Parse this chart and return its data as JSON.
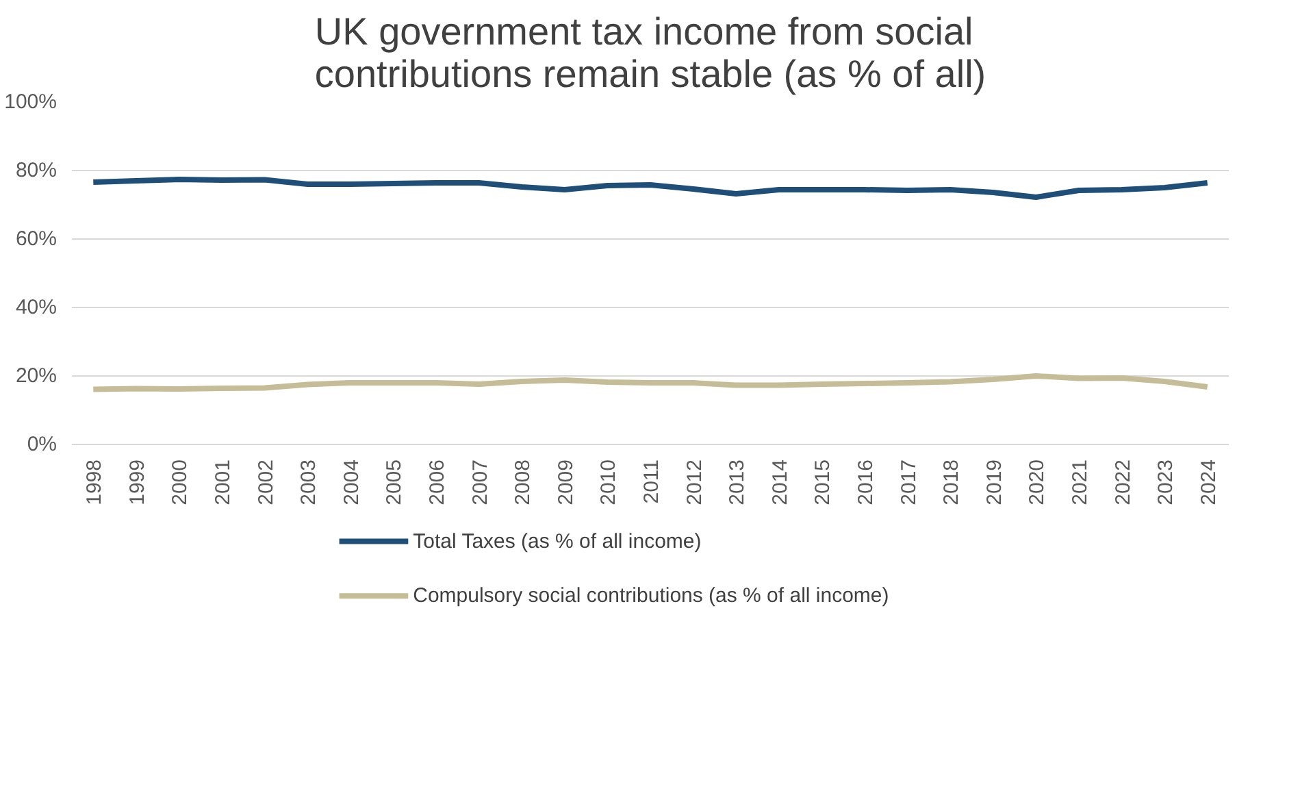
{
  "chart_data": {
    "type": "line",
    "title": "UK government tax income from social contributions remain stable (as % of all)",
    "categories": [
      "1998",
      "1999",
      "2000",
      "2001",
      "2002",
      "2003",
      "2004",
      "2005",
      "2006",
      "2007",
      "2008",
      "2009",
      "2010",
      "2011",
      "2012",
      "2013",
      "2014",
      "2015",
      "2016",
      "2017",
      "2018",
      "2019",
      "2020",
      "2021",
      "2022",
      "2023",
      "2024"
    ],
    "series": [
      {
        "name": "Total Taxes (as % of all income)",
        "color": "#1f4e79",
        "values": [
          76.6,
          77,
          77.4,
          77.2,
          77.3,
          76,
          76,
          76.2,
          76.4,
          76.4,
          75.2,
          74.4,
          75.6,
          75.8,
          74.6,
          73.2,
          74.4,
          74.4,
          74.4,
          74.2,
          74.4,
          73.6,
          72.2,
          74.2,
          74.4,
          75,
          76.4
        ]
      },
      {
        "name": "Compulsory social contributions (as % of all income)",
        "color": "#c5bd97",
        "values": [
          16.1,
          16.3,
          16.2,
          16.4,
          16.5,
          17.5,
          18,
          18,
          18,
          17.6,
          18.4,
          18.8,
          18.2,
          18,
          18,
          17.3,
          17.3,
          17.6,
          17.8,
          18,
          18.3,
          19,
          20,
          19.3,
          19.4,
          18.4,
          16.8
        ]
      }
    ],
    "ylim": [
      0,
      100
    ],
    "yticks": [
      {
        "value": 0,
        "label": "0%"
      },
      {
        "value": 20,
        "label": "20%"
      },
      {
        "value": 40,
        "label": "40%"
      },
      {
        "value": 60,
        "label": "60%"
      },
      {
        "value": 80,
        "label": "80%"
      },
      {
        "value": 100,
        "label": "100%"
      }
    ],
    "grid": "y",
    "legend": "bottom",
    "marker": "none",
    "line_style": "solid"
  }
}
